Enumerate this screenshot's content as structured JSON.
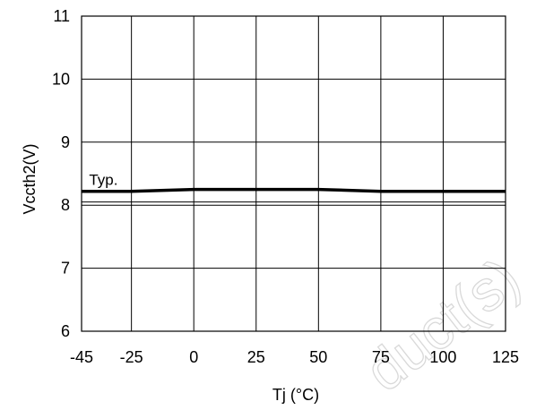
{
  "chart_data": {
    "type": "line",
    "title": "",
    "xlabel": "Tj (°C)",
    "ylabel": "Vccth2(V)",
    "xlim": [
      -45,
      125
    ],
    "ylim": [
      6,
      11
    ],
    "x_ticks": [
      "-45",
      "-25",
      "0",
      "25",
      "50",
      "75",
      "100",
      "125"
    ],
    "x_tick_values": [
      -45,
      -25,
      0,
      25,
      50,
      75,
      100,
      125
    ],
    "y_ticks": [
      "6",
      "7",
      "8",
      "9",
      "10",
      "11"
    ],
    "y_tick_values": [
      6,
      7,
      8,
      9,
      10,
      11
    ],
    "grid": true,
    "series": [
      {
        "name": "Typ.",
        "x": [
          -45,
          -25,
          0,
          25,
          50,
          75,
          100,
          125
        ],
        "y": [
          8.22,
          8.22,
          8.25,
          8.25,
          8.25,
          8.22,
          8.22,
          8.22
        ]
      }
    ],
    "annotations": [
      {
        "text": "Typ.",
        "x": -42,
        "y": 8.32
      }
    ],
    "reference_lines": [
      {
        "y": 8.05
      }
    ]
  },
  "watermark": "duct(s)",
  "colors": {
    "line": "#000000",
    "grid": "#000000",
    "watermark": "#d9d9d9"
  }
}
